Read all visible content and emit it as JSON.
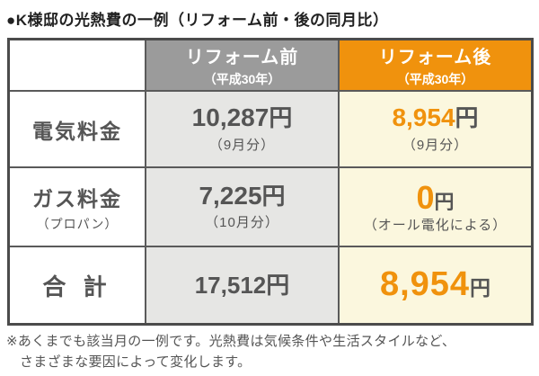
{
  "title": "●K様邸の光熱費の一例（リフォーム前・後の同月比）",
  "colors": {
    "accent_orange": "#f0920d",
    "header_gray": "#9b9b9b",
    "cell_gray": "#e6e6e4",
    "cell_cream": "#fbf7de",
    "border_dark": "#4b4b4b",
    "text_gray": "#555555"
  },
  "table": {
    "header": {
      "before_line1": "リフォーム前",
      "before_line2": "（平成30年）",
      "after_line1": "リフォーム後",
      "after_line2": "（平成30年）"
    },
    "rows": [
      {
        "label": "電気料金",
        "label_note": "",
        "before_value": "10,287",
        "before_unit": "円",
        "before_note": "（9月分）",
        "after_value": "8,954",
        "after_unit": "円",
        "after_note": "（9月分）"
      },
      {
        "label": "ガス料金",
        "label_note": "（プロパン）",
        "before_value": "7,225",
        "before_unit": "円",
        "before_note": "（10月分）",
        "after_value": "0",
        "after_unit": "円",
        "after_note": "（オール電化による）"
      },
      {
        "label": "合 計",
        "label_note": "",
        "before_value": "17,512",
        "before_unit": "円",
        "before_note": "",
        "after_value": "8,954",
        "after_unit": "円",
        "after_note": ""
      }
    ]
  },
  "footnote": {
    "line1": "※あくまでも該当月の一例です。光熱費は気候条件や生活スタイルなど、",
    "line2": "さまざまな要因によって変化します。"
  },
  "chart_data": {
    "type": "table",
    "title": "K様邸の光熱費の一例（リフォーム前・後の同月比）",
    "columns": [
      "",
      "リフォーム前（平成30年）",
      "リフォーム後（平成30年）"
    ],
    "rows": [
      [
        "電気料金",
        "10,287円（9月分）",
        "8,954円（9月分）"
      ],
      [
        "ガス料金（プロパン）",
        "7,225円（10月分）",
        "0円（オール電化による）"
      ],
      [
        "合計",
        "17,512円",
        "8,954円"
      ]
    ],
    "values_numeric": {
      "electric": {
        "before_yen": 10287,
        "after_yen": 8954
      },
      "gas": {
        "before_yen": 7225,
        "after_yen": 0
      },
      "total": {
        "before_yen": 17512,
        "after_yen": 8954
      }
    }
  }
}
